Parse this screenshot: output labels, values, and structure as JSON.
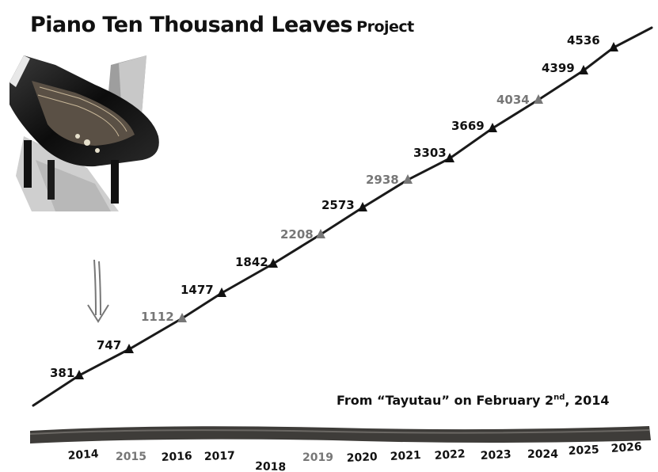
{
  "title": {
    "main": "Piano Ten Thousand Leaves",
    "suffix": "Project"
  },
  "caption": {
    "text": "From “Tayutau” on February 2",
    "sup": "nd",
    "tail": ", 2014"
  },
  "milestones": [
    {
      "value": "381",
      "color": "#111111"
    },
    {
      "value": "747",
      "color": "#111111"
    },
    {
      "value": "1112",
      "color": "#777777"
    },
    {
      "value": "1477",
      "color": "#111111"
    },
    {
      "value": "1842",
      "color": "#111111"
    },
    {
      "value": "2208",
      "color": "#777777"
    },
    {
      "value": "2573",
      "color": "#111111"
    },
    {
      "value": "2938",
      "color": "#777777"
    },
    {
      "value": "3303",
      "color": "#111111"
    },
    {
      "value": "3669",
      "color": "#111111"
    },
    {
      "value": "4034",
      "color": "#777777"
    },
    {
      "value": "4399",
      "color": "#111111"
    },
    {
      "value": "4536",
      "color": "#111111"
    }
  ],
  "years": [
    {
      "label": "2014",
      "color": "#111111"
    },
    {
      "label": "2015",
      "color": "#777777"
    },
    {
      "label": "2016",
      "color": "#111111"
    },
    {
      "label": "2017",
      "color": "#111111"
    },
    {
      "label": "2018",
      "color": "#111111"
    },
    {
      "label": "2019",
      "color": "#777777"
    },
    {
      "label": "2020",
      "color": "#111111"
    },
    {
      "label": "2021",
      "color": "#111111"
    },
    {
      "label": "2022",
      "color": "#111111"
    },
    {
      "label": "2023",
      "color": "#111111"
    },
    {
      "label": "2024",
      "color": "#111111"
    },
    {
      "label": "2025",
      "color": "#111111"
    },
    {
      "label": "2026",
      "color": "#111111"
    }
  ],
  "icons": {
    "piano": "grand-piano-image",
    "arrow": "down-arrow-icon"
  }
}
